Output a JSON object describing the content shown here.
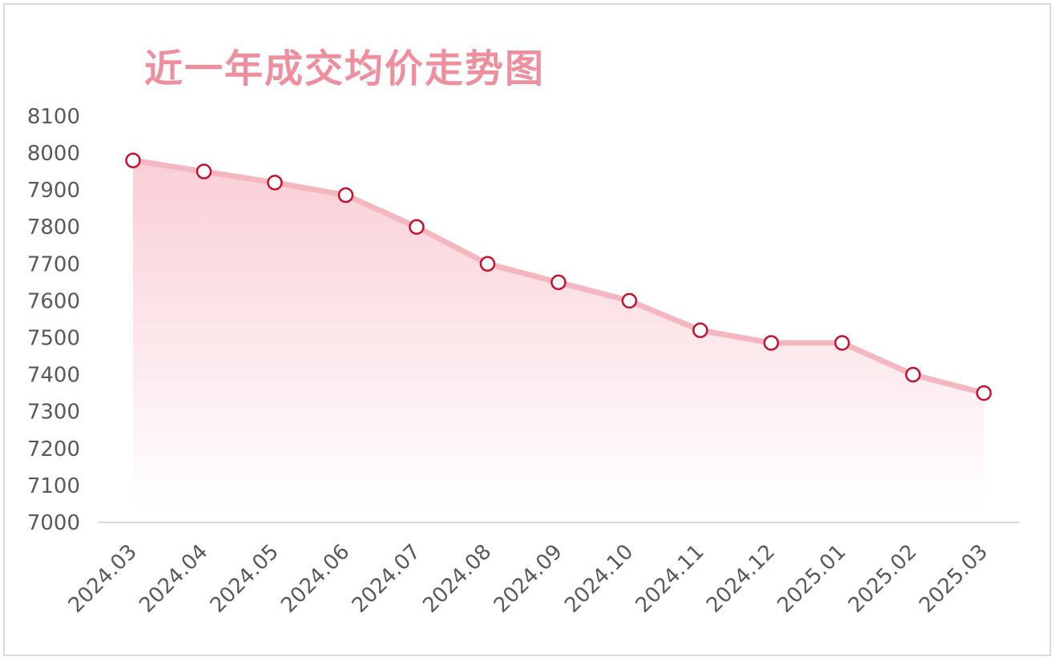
{
  "chart_data": {
    "type": "area",
    "title": "近一年成交均价走势图",
    "categories": [
      "2024.03",
      "2024.04",
      "2024.05",
      "2024.06",
      "2024.07",
      "2024.08",
      "2024.09",
      "2024.10",
      "2024.11",
      "2024.12",
      "2025.01",
      "2025.02",
      "2025.03"
    ],
    "series": [
      {
        "values": [
          7980,
          7950,
          7920,
          7886,
          7800,
          7700,
          7650,
          7600,
          7520,
          7486,
          7486,
          7400,
          7350
        ]
      }
    ],
    "ylim": [
      7000,
      8100
    ],
    "yticks": [
      "7000",
      "7100",
      "7200",
      "7300",
      "7400",
      "7500",
      "7600",
      "7700",
      "7800",
      "7900",
      "8000",
      "8100"
    ],
    "xlabel": "",
    "ylabel": "",
    "grid": false,
    "legend": "none",
    "markers": true
  },
  "colors": {
    "title": "#ee8f9e",
    "line": "#f4b7c0",
    "fill_top": "#f9cfd6",
    "fill_bottom": "#ffffff",
    "marker_stroke": "#c8102e",
    "marker_fill": "#ffffff",
    "axis": "#d9d9d9",
    "tick_text": "#595959"
  }
}
